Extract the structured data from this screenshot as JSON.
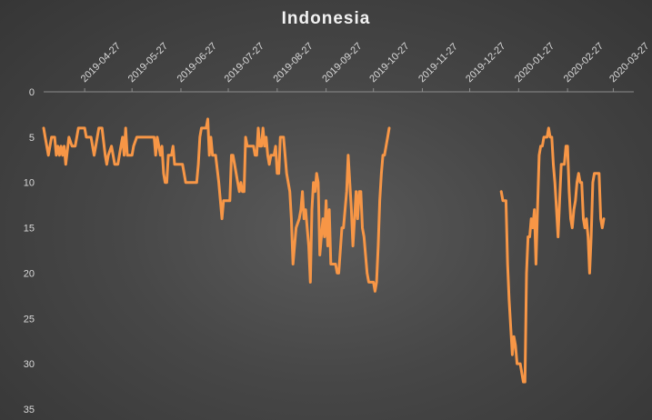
{
  "chart_data": {
    "type": "line",
    "title": "Indonesia",
    "xlabel": "",
    "ylabel": "",
    "y_axis_inverted": true,
    "ylim": [
      0,
      35
    ],
    "y_ticks": [
      0,
      5,
      10,
      15,
      20,
      25,
      30,
      35
    ],
    "x_range": [
      "2019-04-01",
      "2020-04-09"
    ],
    "x_tick_labels": [
      "2019-04-27",
      "2019-05-27",
      "2019-06-27",
      "2019-07-27",
      "2019-08-27",
      "2019-09-27",
      "2019-10-27",
      "2019-11-27",
      "2019-12-27",
      "2020-01-27",
      "2020-02-27",
      "2020-03-27"
    ],
    "grid": false,
    "legend": "none",
    "line_color": "#f79646",
    "series": [
      {
        "segments": [
          [
            [
              "2019-04-01",
              4
            ],
            [
              "2019-04-02",
              5
            ],
            [
              "2019-04-04",
              7
            ],
            [
              "2019-04-06",
              5
            ],
            [
              "2019-04-08",
              5
            ],
            [
              "2019-04-09",
              7
            ],
            [
              "2019-04-10",
              6
            ],
            [
              "2019-04-11",
              7
            ],
            [
              "2019-04-12",
              6
            ],
            [
              "2019-04-13",
              7
            ],
            [
              "2019-04-14",
              6
            ],
            [
              "2019-04-15",
              8
            ],
            [
              "2019-04-17",
              5
            ],
            [
              "2019-04-19",
              6
            ],
            [
              "2019-04-21",
              6
            ],
            [
              "2019-04-23",
              4
            ],
            [
              "2019-04-27",
              4
            ],
            [
              "2019-04-28",
              5
            ],
            [
              "2019-05-01",
              5
            ],
            [
              "2019-05-02",
              6
            ],
            [
              "2019-05-03",
              7
            ],
            [
              "2019-05-04",
              6
            ],
            [
              "2019-05-06",
              4
            ],
            [
              "2019-05-08",
              4
            ],
            [
              "2019-05-10",
              7
            ],
            [
              "2019-05-11",
              8
            ],
            [
              "2019-05-12",
              7
            ],
            [
              "2019-05-14",
              6
            ],
            [
              "2019-05-15",
              7
            ],
            [
              "2019-05-16",
              8
            ],
            [
              "2019-05-18",
              8
            ],
            [
              "2019-05-20",
              6
            ],
            [
              "2019-05-21",
              5
            ],
            [
              "2019-05-22",
              7
            ],
            [
              "2019-05-23",
              4
            ],
            [
              "2019-05-24",
              7
            ],
            [
              "2019-05-27",
              7
            ],
            [
              "2019-05-28",
              6
            ],
            [
              "2019-05-30",
              5
            ],
            [
              "2019-06-10",
              5
            ],
            [
              "2019-06-11",
              7
            ],
            [
              "2019-06-12",
              5
            ],
            [
              "2019-06-13",
              6
            ],
            [
              "2019-06-14",
              7
            ],
            [
              "2019-06-15",
              6
            ],
            [
              "2019-06-16",
              9
            ],
            [
              "2019-06-17",
              10
            ],
            [
              "2019-06-18",
              10
            ],
            [
              "2019-06-19",
              7
            ],
            [
              "2019-06-21",
              7
            ],
            [
              "2019-06-22",
              6
            ],
            [
              "2019-06-23",
              8
            ],
            [
              "2019-06-28",
              8
            ],
            [
              "2019-06-30",
              10
            ],
            [
              "2019-07-07",
              10
            ],
            [
              "2019-07-08",
              8
            ],
            [
              "2019-07-09",
              5
            ],
            [
              "2019-07-10",
              4
            ],
            [
              "2019-07-13",
              4
            ],
            [
              "2019-07-14",
              3
            ],
            [
              "2019-07-15",
              7
            ],
            [
              "2019-07-16",
              5
            ],
            [
              "2019-07-17",
              7
            ],
            [
              "2019-07-19",
              7
            ],
            [
              "2019-07-21",
              10
            ],
            [
              "2019-07-23",
              14
            ],
            [
              "2019-07-24",
              12
            ],
            [
              "2019-07-28",
              12
            ],
            [
              "2019-07-29",
              7
            ],
            [
              "2019-07-30",
              7
            ],
            [
              "2019-07-31",
              8
            ],
            [
              "2019-08-01",
              9
            ],
            [
              "2019-08-02",
              10
            ],
            [
              "2019-08-03",
              11
            ],
            [
              "2019-08-04",
              10
            ],
            [
              "2019-08-05",
              11
            ],
            [
              "2019-08-06",
              11
            ],
            [
              "2019-08-07",
              5
            ],
            [
              "2019-08-08",
              6
            ],
            [
              "2019-08-12",
              6
            ],
            [
              "2019-08-13",
              7
            ],
            [
              "2019-08-14",
              7
            ],
            [
              "2019-08-15",
              4
            ],
            [
              "2019-08-16",
              6
            ],
            [
              "2019-08-17",
              6
            ],
            [
              "2019-08-18",
              4
            ],
            [
              "2019-08-19",
              6
            ],
            [
              "2019-08-20",
              5
            ],
            [
              "2019-08-21",
              7
            ],
            [
              "2019-08-22",
              8
            ],
            [
              "2019-08-23",
              7
            ],
            [
              "2019-08-25",
              7
            ],
            [
              "2019-08-26",
              6
            ],
            [
              "2019-08-27",
              9
            ],
            [
              "2019-08-28",
              9
            ],
            [
              "2019-08-29",
              5
            ],
            [
              "2019-08-31",
              5
            ],
            [
              "2019-09-01",
              7
            ],
            [
              "2019-09-02",
              9
            ],
            [
              "2019-09-04",
              11
            ],
            [
              "2019-09-05",
              14
            ],
            [
              "2019-09-06",
              19
            ],
            [
              "2019-09-08",
              15
            ],
            [
              "2019-09-10",
              14
            ],
            [
              "2019-09-11",
              13
            ],
            [
              "2019-09-12",
              11
            ],
            [
              "2019-09-13",
              14
            ],
            [
              "2019-09-14",
              13
            ],
            [
              "2019-09-15",
              15
            ],
            [
              "2019-09-16",
              17
            ],
            [
              "2019-09-17",
              21
            ],
            [
              "2019-09-18",
              13
            ],
            [
              "2019-09-19",
              10
            ],
            [
              "2019-09-20",
              11
            ],
            [
              "2019-09-21",
              9
            ],
            [
              "2019-09-22",
              10
            ],
            [
              "2019-09-23",
              18
            ],
            [
              "2019-09-24",
              16
            ],
            [
              "2019-09-25",
              14
            ],
            [
              "2019-09-26",
              16
            ],
            [
              "2019-09-27",
              12
            ],
            [
              "2019-09-28",
              17
            ],
            [
              "2019-09-29",
              13
            ],
            [
              "2019-09-30",
              19
            ],
            [
              "2019-10-03",
              19
            ],
            [
              "2019-10-04",
              20
            ],
            [
              "2019-10-05",
              20
            ],
            [
              "2019-10-07",
              15
            ],
            [
              "2019-10-08",
              15
            ],
            [
              "2019-10-10",
              11
            ],
            [
              "2019-10-11",
              7
            ],
            [
              "2019-10-13",
              13
            ],
            [
              "2019-10-14",
              17
            ],
            [
              "2019-10-15",
              14
            ],
            [
              "2019-10-16",
              11
            ],
            [
              "2019-10-17",
              14
            ],
            [
              "2019-10-18",
              11
            ],
            [
              "2019-10-19",
              11
            ],
            [
              "2019-10-20",
              15
            ],
            [
              "2019-10-21",
              16
            ],
            [
              "2019-10-22",
              18
            ],
            [
              "2019-10-23",
              20
            ],
            [
              "2019-10-24",
              21
            ],
            [
              "2019-10-27",
              21
            ],
            [
              "2019-10-28",
              22
            ],
            [
              "2019-10-29",
              21
            ],
            [
              "2019-10-30",
              17
            ],
            [
              "2019-10-31",
              12
            ],
            [
              "2019-11-01",
              9
            ],
            [
              "2019-11-02",
              7
            ],
            [
              "2019-11-03",
              7
            ],
            [
              "2019-11-05",
              5
            ],
            [
              "2019-11-06",
              4
            ]
          ],
          [
            [
              "2020-01-16",
              11
            ],
            [
              "2020-01-17",
              12
            ],
            [
              "2020-01-18",
              12
            ],
            [
              "2020-01-19",
              12
            ],
            [
              "2020-01-20",
              19
            ],
            [
              "2020-01-21",
              23
            ],
            [
              "2020-01-23",
              29
            ],
            [
              "2020-01-24",
              27
            ],
            [
              "2020-01-25",
              28
            ],
            [
              "2020-01-26",
              30
            ],
            [
              "2020-01-27",
              30
            ],
            [
              "2020-01-28",
              30
            ],
            [
              "2020-01-29",
              31
            ],
            [
              "2020-01-30",
              32
            ],
            [
              "2020-01-31",
              32
            ],
            [
              "2020-02-01",
              20
            ],
            [
              "2020-02-02",
              16
            ],
            [
              "2020-02-03",
              16
            ],
            [
              "2020-02-04",
              14
            ],
            [
              "2020-02-05",
              15
            ],
            [
              "2020-02-06",
              13
            ],
            [
              "2020-02-07",
              19
            ],
            [
              "2020-02-08",
              13
            ],
            [
              "2020-02-09",
              7
            ],
            [
              "2020-02-10",
              6
            ],
            [
              "2020-02-11",
              6
            ],
            [
              "2020-02-12",
              5
            ],
            [
              "2020-02-14",
              5
            ],
            [
              "2020-02-15",
              4
            ],
            [
              "2020-02-16",
              5
            ],
            [
              "2020-02-17",
              5
            ],
            [
              "2020-02-18",
              8
            ],
            [
              "2020-02-19",
              10
            ],
            [
              "2020-02-20",
              13
            ],
            [
              "2020-02-21",
              16
            ],
            [
              "2020-02-22",
              12
            ],
            [
              "2020-02-23",
              8
            ],
            [
              "2020-02-24",
              8
            ],
            [
              "2020-02-25",
              8
            ],
            [
              "2020-02-26",
              6
            ],
            [
              "2020-02-27",
              6
            ],
            [
              "2020-02-28",
              11
            ],
            [
              "2020-02-29",
              14
            ],
            [
              "2020-03-01",
              15
            ],
            [
              "2020-03-02",
              13
            ],
            [
              "2020-03-03",
              12
            ],
            [
              "2020-03-04",
              10
            ],
            [
              "2020-03-05",
              9
            ],
            [
              "2020-03-06",
              10
            ],
            [
              "2020-03-07",
              10
            ],
            [
              "2020-03-08",
              14
            ],
            [
              "2020-03-09",
              15
            ],
            [
              "2020-03-10",
              14
            ],
            [
              "2020-03-11",
              16
            ],
            [
              "2020-03-12",
              20
            ],
            [
              "2020-03-13",
              16
            ],
            [
              "2020-03-14",
              10
            ],
            [
              "2020-03-15",
              9
            ],
            [
              "2020-03-18",
              9
            ],
            [
              "2020-03-19",
              14
            ],
            [
              "2020-03-20",
              15
            ],
            [
              "2020-03-21",
              14
            ]
          ]
        ]
      }
    ]
  }
}
